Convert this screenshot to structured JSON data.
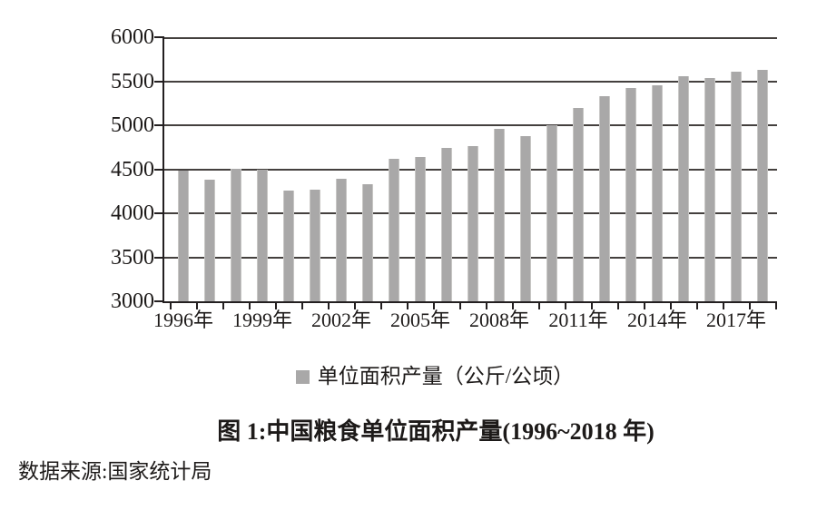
{
  "chart_data": {
    "type": "bar",
    "title": "图 1:中国粮食单位面积产量(1996~2018 年)",
    "source": "数据来源:国家统计局",
    "legend_label": "单位面积产量（公斤/公顷）",
    "legend_position": "bottom",
    "categories": [
      "1996年",
      "1997年",
      "1998年",
      "1999年",
      "2000年",
      "2001年",
      "2002年",
      "2003年",
      "2004年",
      "2005年",
      "2006年",
      "2007年",
      "2008年",
      "2009年",
      "2010年",
      "2011年",
      "2012年",
      "2013年",
      "2014年",
      "2015年",
      "2016年",
      "2017年",
      "2018年"
    ],
    "values": [
      4480,
      4380,
      4505,
      4495,
      4255,
      4265,
      4390,
      4335,
      4615,
      4640,
      4740,
      4760,
      4955,
      4875,
      5000,
      5200,
      5330,
      5425,
      5450,
      5555,
      5540,
      5610,
      5625
    ],
    "x_tick_labels": [
      "1996年",
      "1999年",
      "2002年",
      "2005年",
      "2008年",
      "2011年",
      "2014年",
      "2017年"
    ],
    "ytick_labels": [
      "3000",
      "3500",
      "4000",
      "4500",
      "5000",
      "5500",
      "6000"
    ],
    "ylim": [
      3000,
      6000
    ],
    "ytick_step": 500,
    "grid": true,
    "xlabel": "",
    "ylabel": "公斤/公顷",
    "colors": {
      "bar": "#a9a8a8",
      "gridline": "#44403e",
      "axis": "#231f20",
      "text": "#1d1a19"
    }
  }
}
